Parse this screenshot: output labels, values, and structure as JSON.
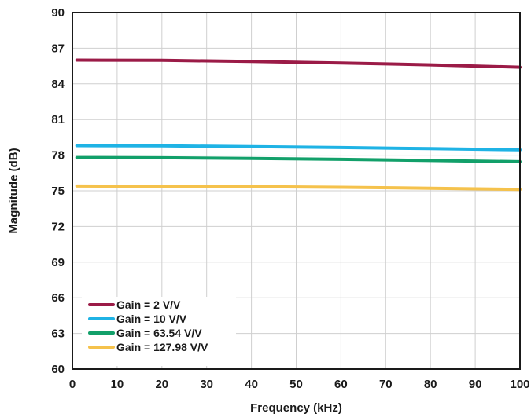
{
  "chart_data": {
    "type": "line",
    "title": "",
    "xlabel": "Frequency (kHz)",
    "ylabel": "Magnitude (dB)",
    "xlim": [
      0,
      100
    ],
    "ylim": [
      60,
      90
    ],
    "xticks": [
      0,
      10,
      20,
      30,
      40,
      50,
      60,
      70,
      80,
      90,
      100
    ],
    "yticks": [
      60,
      63,
      66,
      69,
      72,
      75,
      78,
      81,
      84,
      87,
      90
    ],
    "grid": true,
    "legend_position": "bottom-left",
    "series": [
      {
        "name": "Gain = 2 V/V",
        "color": "#9b1b47",
        "x": [
          1,
          20,
          40,
          60,
          80,
          100
        ],
        "y": [
          86.0,
          85.98,
          85.88,
          85.76,
          85.6,
          85.4
        ]
      },
      {
        "name": "Gain = 10 V/V",
        "color": "#1fb3e5",
        "x": [
          1,
          20,
          40,
          60,
          80,
          100
        ],
        "y": [
          78.8,
          78.78,
          78.72,
          78.64,
          78.55,
          78.45
        ]
      },
      {
        "name": "Gain = 63.54 V/V",
        "color": "#12a06a",
        "x": [
          1,
          20,
          40,
          60,
          80,
          100
        ],
        "y": [
          77.8,
          77.78,
          77.72,
          77.65,
          77.55,
          77.45
        ]
      },
      {
        "name": "Gain = 127.98 V/V",
        "color": "#f5c24c",
        "x": [
          1,
          20,
          40,
          60,
          80,
          100
        ],
        "y": [
          75.4,
          75.39,
          75.35,
          75.3,
          75.22,
          75.12
        ]
      }
    ]
  }
}
